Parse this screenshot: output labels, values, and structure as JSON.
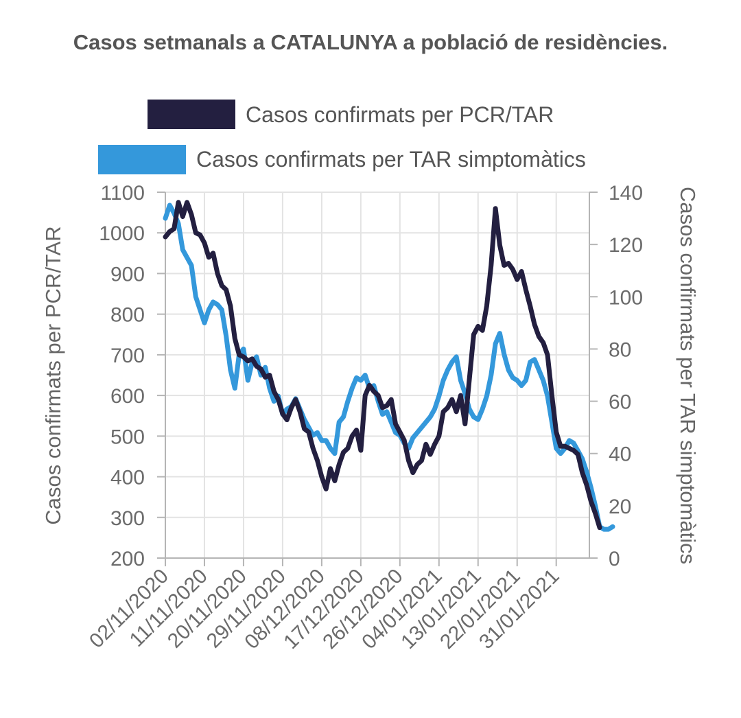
{
  "chart_data": {
    "type": "line",
    "title": "Casos setmanals a CATALUNYA a població de residències.",
    "x_tick_labels": [
      "02/11/2020",
      "11/11/2020",
      "20/11/2020",
      "29/11/2020",
      "08/12/2020",
      "17/12/2020",
      "26/12/2020",
      "04/01/2021",
      "13/01/2021",
      "22/01/2021",
      "31/01/2021"
    ],
    "x_start": "2020-11-02",
    "x_end": "2021-02-09",
    "y_left": {
      "label": "Casos confirmats per PCR/TAR",
      "ylim": [
        200,
        1100
      ],
      "ticks": [
        "1100",
        "1000",
        "900",
        "800",
        "700",
        "600",
        "500",
        "400",
        "300",
        "200"
      ]
    },
    "y_right": {
      "label": "Casos confirmats per TAR simptomàtics",
      "ylim": [
        0,
        140
      ],
      "ticks": [
        "140",
        "120",
        "100",
        "80",
        "60",
        "40",
        "20",
        "0"
      ]
    },
    "grid": true,
    "legend": "top",
    "series": [
      {
        "name": "Casos confirmats per PCR/TAR",
        "axis": "left",
        "color": "#231f40",
        "points": [
          [
            "2020-11-02",
            990
          ],
          [
            "2020-11-03",
            1003
          ],
          [
            "2020-11-04",
            1010
          ],
          [
            "2020-11-05",
            1075
          ],
          [
            "2020-11-06",
            1040
          ],
          [
            "2020-11-07",
            1075
          ],
          [
            "2020-11-08",
            1045
          ],
          [
            "2020-11-09",
            1000
          ],
          [
            "2020-11-10",
            995
          ],
          [
            "2020-11-11",
            975
          ],
          [
            "2020-11-12",
            940
          ],
          [
            "2020-11-13",
            950
          ],
          [
            "2020-11-14",
            900
          ],
          [
            "2020-11-15",
            870
          ],
          [
            "2020-11-16",
            860
          ],
          [
            "2020-11-17",
            820
          ],
          [
            "2020-11-18",
            740
          ],
          [
            "2020-11-19",
            700
          ],
          [
            "2020-11-20",
            695
          ],
          [
            "2020-11-21",
            685
          ],
          [
            "2020-11-22",
            690
          ],
          [
            "2020-11-23",
            672
          ],
          [
            "2020-11-24",
            665
          ],
          [
            "2020-11-25",
            645
          ],
          [
            "2020-11-26",
            650
          ],
          [
            "2020-11-27",
            610
          ],
          [
            "2020-11-28",
            590
          ],
          [
            "2020-11-29",
            555
          ],
          [
            "2020-11-30",
            540
          ],
          [
            "2020-12-01",
            570
          ],
          [
            "2020-12-02",
            590
          ],
          [
            "2020-12-03",
            560
          ],
          [
            "2020-12-04",
            518
          ],
          [
            "2020-12-05",
            510
          ],
          [
            "2020-12-06",
            470
          ],
          [
            "2020-12-07",
            440
          ],
          [
            "2020-12-08",
            400
          ],
          [
            "2020-12-09",
            370
          ],
          [
            "2020-12-10",
            420
          ],
          [
            "2020-12-11",
            390
          ],
          [
            "2020-12-12",
            430
          ],
          [
            "2020-12-13",
            460
          ],
          [
            "2020-12-14",
            470
          ],
          [
            "2020-12-15",
            500
          ],
          [
            "2020-12-16",
            515
          ],
          [
            "2020-12-17",
            465
          ],
          [
            "2020-12-18",
            600
          ],
          [
            "2020-12-19",
            625
          ],
          [
            "2020-12-20",
            610
          ],
          [
            "2020-12-21",
            600
          ],
          [
            "2020-12-22",
            570
          ],
          [
            "2020-12-23",
            575
          ],
          [
            "2020-12-24",
            590
          ],
          [
            "2020-12-25",
            530
          ],
          [
            "2020-12-26",
            510
          ],
          [
            "2020-12-27",
            490
          ],
          [
            "2020-12-28",
            440
          ],
          [
            "2020-12-29",
            410
          ],
          [
            "2020-12-30",
            430
          ],
          [
            "2020-12-31",
            440
          ],
          [
            "2021-01-01",
            480
          ],
          [
            "2021-01-02",
            455
          ],
          [
            "2021-01-03",
            480
          ],
          [
            "2021-01-04",
            500
          ],
          [
            "2021-01-05",
            560
          ],
          [
            "2021-01-06",
            570
          ],
          [
            "2021-01-07",
            590
          ],
          [
            "2021-01-08",
            560
          ],
          [
            "2021-01-09",
            600
          ],
          [
            "2021-01-10",
            530
          ],
          [
            "2021-01-11",
            640
          ],
          [
            "2021-01-12",
            750
          ],
          [
            "2021-01-13",
            770
          ],
          [
            "2021-01-14",
            760
          ],
          [
            "2021-01-15",
            820
          ],
          [
            "2021-01-16",
            920
          ],
          [
            "2021-01-17",
            1060
          ],
          [
            "2021-01-18",
            970
          ],
          [
            "2021-01-19",
            920
          ],
          [
            "2021-01-20",
            925
          ],
          [
            "2021-01-21",
            910
          ],
          [
            "2021-01-22",
            885
          ],
          [
            "2021-01-23",
            905
          ],
          [
            "2021-01-24",
            860
          ],
          [
            "2021-01-25",
            820
          ],
          [
            "2021-01-26",
            775
          ],
          [
            "2021-01-27",
            745
          ],
          [
            "2021-01-28",
            730
          ],
          [
            "2021-01-29",
            700
          ],
          [
            "2021-01-30",
            600
          ],
          [
            "2021-01-31",
            510
          ],
          [
            "2021-02-01",
            475
          ],
          [
            "2021-02-02",
            475
          ],
          [
            "2021-02-03",
            470
          ],
          [
            "2021-02-04",
            465
          ],
          [
            "2021-02-05",
            455
          ],
          [
            "2021-02-06",
            410
          ],
          [
            "2021-02-07",
            380
          ],
          [
            "2021-02-08",
            340
          ],
          [
            "2021-02-09",
            310
          ],
          [
            "2021-02-10",
            275
          ]
        ]
      },
      {
        "name": "Casos confirmats per TAR simptomàtics",
        "axis": "right",
        "color": "#3498db",
        "points": [
          [
            "2020-11-02",
            130
          ],
          [
            "2020-11-03",
            135
          ],
          [
            "2020-11-04",
            132
          ],
          [
            "2020-11-05",
            128
          ],
          [
            "2020-11-06",
            118
          ],
          [
            "2020-11-07",
            115
          ],
          [
            "2020-11-08",
            112
          ],
          [
            "2020-11-09",
            100
          ],
          [
            "2020-11-10",
            95
          ],
          [
            "2020-11-11",
            90
          ],
          [
            "2020-11-12",
            95
          ],
          [
            "2020-11-13",
            98
          ],
          [
            "2020-11-14",
            97
          ],
          [
            "2020-11-15",
            95
          ],
          [
            "2020-11-16",
            85
          ],
          [
            "2020-11-17",
            72
          ],
          [
            "2020-11-18",
            65
          ],
          [
            "2020-11-19",
            78
          ],
          [
            "2020-11-20",
            80
          ],
          [
            "2020-11-21",
            68
          ],
          [
            "2020-11-22",
            75
          ],
          [
            "2020-11-23",
            77
          ],
          [
            "2020-11-24",
            70
          ],
          [
            "2020-11-25",
            73
          ],
          [
            "2020-11-26",
            65
          ],
          [
            "2020-11-27",
            60
          ],
          [
            "2020-11-28",
            62
          ],
          [
            "2020-11-29",
            55
          ],
          [
            "2020-11-30",
            57
          ],
          [
            "2020-12-01",
            58
          ],
          [
            "2020-12-02",
            61
          ],
          [
            "2020-12-03",
            57
          ],
          [
            "2020-12-04",
            53
          ],
          [
            "2020-12-05",
            50
          ],
          [
            "2020-12-06",
            47
          ],
          [
            "2020-12-07",
            48
          ],
          [
            "2020-12-08",
            45
          ],
          [
            "2020-12-09",
            45
          ],
          [
            "2020-12-10",
            42
          ],
          [
            "2020-12-11",
            40
          ],
          [
            "2020-12-12",
            52
          ],
          [
            "2020-12-13",
            54
          ],
          [
            "2020-12-14",
            60
          ],
          [
            "2020-12-15",
            65
          ],
          [
            "2020-12-16",
            69
          ],
          [
            "2020-12-17",
            68
          ],
          [
            "2020-12-18",
            70
          ],
          [
            "2020-12-19",
            65
          ],
          [
            "2020-12-20",
            66
          ],
          [
            "2020-12-21",
            60
          ],
          [
            "2020-12-22",
            55
          ],
          [
            "2020-12-23",
            56
          ],
          [
            "2020-12-24",
            52
          ],
          [
            "2020-12-25",
            48
          ],
          [
            "2020-12-26",
            47
          ],
          [
            "2020-12-27",
            44
          ],
          [
            "2020-12-28",
            42
          ],
          [
            "2020-12-29",
            46
          ],
          [
            "2020-12-30",
            48
          ],
          [
            "2020-12-31",
            50
          ],
          [
            "2021-01-01",
            52
          ],
          [
            "2021-01-02",
            54
          ],
          [
            "2021-01-03",
            57
          ],
          [
            "2021-01-04",
            62
          ],
          [
            "2021-01-05",
            68
          ],
          [
            "2021-01-06",
            72
          ],
          [
            "2021-01-07",
            75
          ],
          [
            "2021-01-08",
            77
          ],
          [
            "2021-01-09",
            68
          ],
          [
            "2021-01-10",
            63
          ],
          [
            "2021-01-11",
            57
          ],
          [
            "2021-01-12",
            54
          ],
          [
            "2021-01-13",
            53
          ],
          [
            "2021-01-14",
            57
          ],
          [
            "2021-01-15",
            62
          ],
          [
            "2021-01-16",
            70
          ],
          [
            "2021-01-17",
            82
          ],
          [
            "2021-01-18",
            86
          ],
          [
            "2021-01-19",
            78
          ],
          [
            "2021-01-20",
            72
          ],
          [
            "2021-01-21",
            69
          ],
          [
            "2021-01-22",
            68
          ],
          [
            "2021-01-23",
            66
          ],
          [
            "2021-01-24",
            68
          ],
          [
            "2021-01-25",
            75
          ],
          [
            "2021-01-26",
            76
          ],
          [
            "2021-01-27",
            72
          ],
          [
            "2021-01-28",
            68
          ],
          [
            "2021-01-29",
            62
          ],
          [
            "2021-01-30",
            52
          ],
          [
            "2021-01-31",
            42
          ],
          [
            "2021-02-01",
            40
          ],
          [
            "2021-02-02",
            42
          ],
          [
            "2021-02-03",
            45
          ],
          [
            "2021-02-04",
            44
          ],
          [
            "2021-02-05",
            41
          ],
          [
            "2021-02-06",
            38
          ],
          [
            "2021-02-07",
            33
          ],
          [
            "2021-02-08",
            27
          ],
          [
            "2021-02-09",
            20
          ],
          [
            "2021-02-10",
            12
          ],
          [
            "2021-02-11",
            11
          ],
          [
            "2021-02-12",
            11
          ],
          [
            "2021-02-13",
            12
          ]
        ]
      }
    ]
  }
}
